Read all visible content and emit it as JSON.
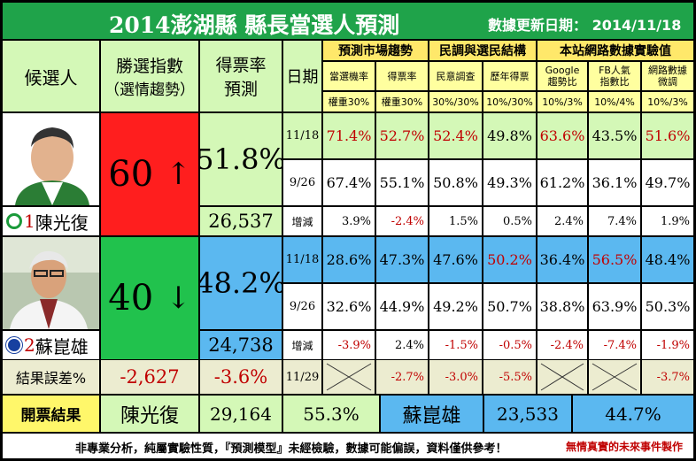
{
  "title": "2014澎湖縣 縣長當選人預測",
  "update": "數據更新日期： 2014/11/18",
  "headers": {
    "candidate": "候選人",
    "win_index_l1": "勝選指數",
    "win_index_l2": "（選情趨勢）",
    "vote_rate_l1": "得票率",
    "vote_rate_l2": "預測",
    "date": "日期",
    "group1": "預測市場趨勢",
    "group2": "民調與選民結構",
    "group3": "本站網路數據實驗值",
    "sub": [
      "當選機率",
      "得票率",
      "民意調查",
      "歷年得票",
      "Google\n趨勢比",
      "FB人氣\n指數比",
      "網路數據\n微調"
    ],
    "weights": [
      "權重30%",
      "權重30%",
      "30%/30%",
      "10%/30%",
      "10%/3%",
      "10%/4%",
      "10%/3%"
    ]
  },
  "candidates": [
    {
      "number": "1",
      "name": "陳光復",
      "index": "60",
      "arrow": "↑",
      "rate": "51.8%",
      "votes": "26,537",
      "rows": [
        {
          "date": "11/18",
          "values": [
            "71.4%",
            "52.7%",
            "52.4%",
            "49.8%",
            "63.6%",
            "43.5%",
            "51.6%"
          ],
          "red": [
            true,
            true,
            true,
            false,
            true,
            false,
            true
          ]
        },
        {
          "date": "9/26",
          "values": [
            "67.4%",
            "55.1%",
            "50.8%",
            "49.3%",
            "61.2%",
            "36.1%",
            "49.7%"
          ],
          "red": [
            false,
            false,
            false,
            false,
            false,
            false,
            false
          ]
        },
        {
          "date": "增減",
          "values": [
            "3.9%",
            "-2.4%",
            "1.5%",
            "0.5%",
            "2.4%",
            "7.4%",
            "1.9%"
          ],
          "red": [
            false,
            true,
            false,
            false,
            false,
            false,
            false
          ]
        }
      ]
    },
    {
      "number": "2",
      "name": "蘇崑雄",
      "index": "40",
      "arrow": "↓",
      "rate": "48.2%",
      "votes": "24,738",
      "rows": [
        {
          "date": "11/18",
          "values": [
            "28.6%",
            "47.3%",
            "47.6%",
            "50.2%",
            "36.4%",
            "56.5%",
            "48.4%"
          ],
          "red": [
            false,
            false,
            false,
            true,
            false,
            true,
            false
          ]
        },
        {
          "date": "9/26",
          "values": [
            "32.6%",
            "44.9%",
            "49.2%",
            "50.7%",
            "38.8%",
            "63.9%",
            "50.3%"
          ],
          "red": [
            false,
            false,
            false,
            false,
            false,
            false,
            false
          ]
        },
        {
          "date": "增減",
          "values": [
            "-3.9%",
            "2.4%",
            "-1.5%",
            "-0.5%",
            "-2.4%",
            "-7.4%",
            "-1.9%"
          ],
          "red": [
            true,
            false,
            true,
            true,
            true,
            true,
            true
          ]
        }
      ]
    }
  ],
  "error_row": {
    "label": "結果誤差%",
    "votes": "-2,627",
    "rate": "-3.6%",
    "date": "11/29",
    "values": [
      "",
      "-2.7%",
      "-3.0%",
      "-5.5%",
      "",
      "",
      "-3.7%"
    ]
  },
  "result_row": {
    "label": "開票結果",
    "c1_name": "陳光復",
    "c1_votes": "29,164",
    "c1_rate": "55.3%",
    "c2_name": "蘇崑雄",
    "c2_votes": "23,533",
    "c2_rate": "44.7%"
  },
  "footer": {
    "disclaimer": "非專業分析，純屬實驗性質，『預測模型』未經檢驗，數據可能偏誤，資料僅供參考！",
    "credit": "無情真實的未來事件製作"
  }
}
